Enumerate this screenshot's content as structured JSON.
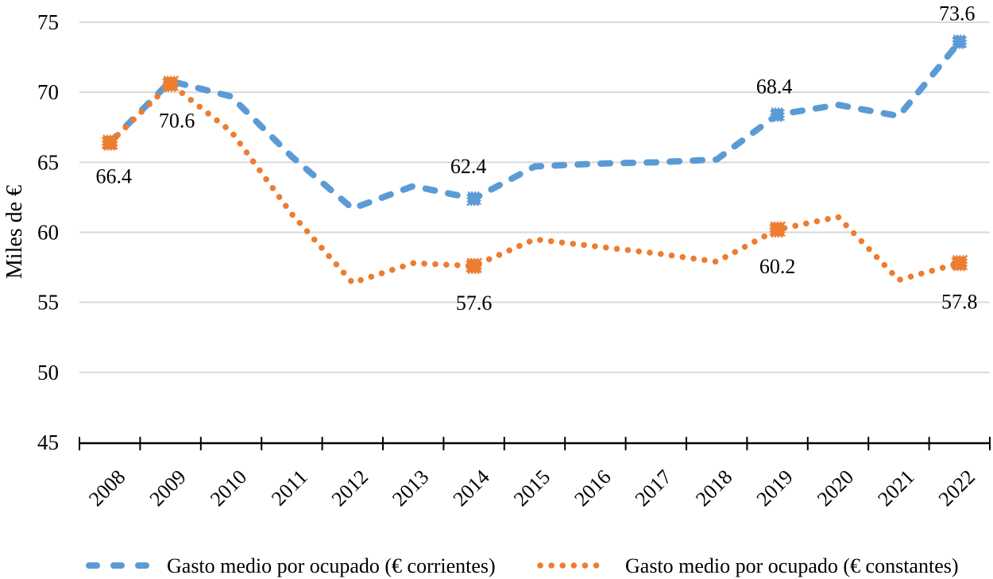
{
  "chart_data": {
    "type": "line",
    "title": "",
    "xlabel": "",
    "ylabel": "Miles de €",
    "categories": [
      "2008",
      "2009",
      "2010",
      "2011",
      "2012",
      "2013",
      "2014",
      "2015",
      "2016",
      "2017",
      "2018",
      "2019",
      "2020",
      "2021",
      "2022"
    ],
    "y_axis": {
      "min": 45,
      "max": 75,
      "step": 5,
      "tick_labels": [
        "45",
        "50",
        "55",
        "60",
        "65",
        "70",
        "75"
      ]
    },
    "grid": true,
    "legend_position": "bottom",
    "series": [
      {
        "name": "Gasto medio por ocupado (€ corrientes)",
        "color": "#5B9BD5",
        "line_style": "dashed",
        "marker": "square",
        "marker_size": 15,
        "values": [
          66.4,
          70.8,
          69.7,
          65.4,
          61.7,
          63.3,
          62.4,
          64.7,
          64.9,
          65.0,
          65.2,
          68.4,
          69.1,
          68.3,
          73.6
        ],
        "marker_indices": [
          6,
          11,
          14
        ],
        "labels": [
          {
            "index": 6,
            "text": "62.4",
            "dx": -7,
            "dy": -32
          },
          {
            "index": 11,
            "text": "68.4",
            "dx": -4,
            "dy": -27
          },
          {
            "index": 14,
            "text": "73.6",
            "dx": -3,
            "dy": -27
          }
        ]
      },
      {
        "name": "Gasto medio por ocupado (€ constantes)",
        "color": "#ED7D31",
        "line_style": "dotted",
        "marker": "x-square",
        "marker_size": 17,
        "values": [
          66.4,
          70.6,
          67.2,
          61.3,
          56.4,
          57.8,
          57.6,
          59.5,
          59.0,
          58.5,
          57.9,
          60.2,
          61.1,
          56.6,
          57.8
        ],
        "marker_indices": [
          0,
          1,
          6,
          11,
          14
        ],
        "labels": [
          {
            "index": 0,
            "text": "66.4",
            "dx": 5,
            "dy": 51
          },
          {
            "index": 1,
            "text": "70.6",
            "dx": 8,
            "dy": 55
          },
          {
            "index": 6,
            "text": "57.6",
            "dx": 0,
            "dy": 55
          },
          {
            "index": 11,
            "text": "60.2",
            "dx": 0,
            "dy": 55
          },
          {
            "index": 14,
            "text": "57.8",
            "dx": 0,
            "dy": 57
          }
        ]
      }
    ],
    "colors": {
      "grid": "#D9D9D9",
      "axis": "#000000",
      "text": "#000000"
    }
  }
}
